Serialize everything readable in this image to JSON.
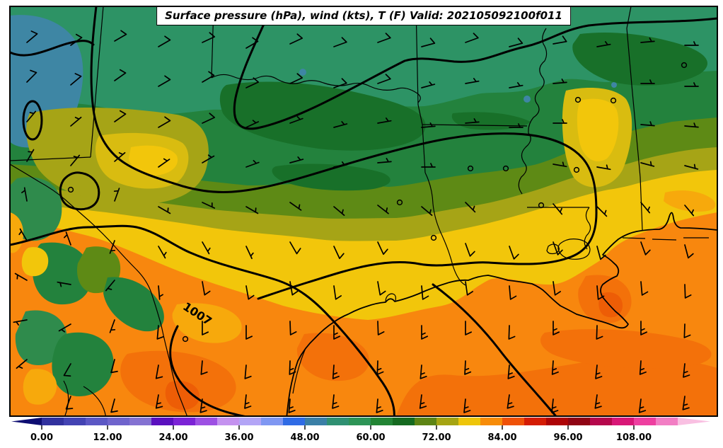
{
  "figure": {
    "title": "Surface pressure (hPa), wind (kts), T (F) Valid: 202105092100f011",
    "pressure_label": "1007"
  },
  "chart_data": {
    "type": "heatmap",
    "title": "Surface pressure (hPa), wind (kts), T (F) Valid: 202105092100f011",
    "field": "2 m temperature (F), filled contours",
    "overlays": [
      "surface pressure isobars (hPa), black contours",
      "wind barbs (kts)"
    ],
    "valid_time": "202105092100f011",
    "isobar_labels": [
      "1007"
    ],
    "colorbar_ticks": [
      "0.00",
      "12.00",
      "24.00",
      "36.00",
      "48.00",
      "60.00",
      "72.00",
      "84.00",
      "96.00",
      "108.00"
    ],
    "colorbar_range": [
      0,
      116
    ],
    "temperature_field_approx_F": {
      "north_band": "52-62",
      "central_band": "64-74",
      "south_and_gulf": "78-86",
      "west_highlands": "56-78 mottled"
    },
    "wind_kts_range": [
      0,
      15
    ]
  },
  "colorbar": {
    "min": 0,
    "max": 116,
    "ticks": [
      {
        "v": 0,
        "label": "0.00"
      },
      {
        "v": 12,
        "label": "12.00"
      },
      {
        "v": 24,
        "label": "24.00"
      },
      {
        "v": 36,
        "label": "36.00"
      },
      {
        "v": 48,
        "label": "48.00"
      },
      {
        "v": 60,
        "label": "60.00"
      },
      {
        "v": 72,
        "label": "72.00"
      },
      {
        "v": 84,
        "label": "84.00"
      },
      {
        "v": 96,
        "label": "96.00"
      },
      {
        "v": 108,
        "label": "108.00"
      }
    ],
    "colors": [
      "#31319e",
      "#4343b3",
      "#5b57c4",
      "#6f64cc",
      "#8472d2",
      "#5a10bf",
      "#7b23d6",
      "#9d50e3",
      "#c492ef",
      "#b3a5f6",
      "#7f97f2",
      "#2f6be5",
      "#3a7fa6",
      "#2f9072",
      "#2d9456",
      "#228434",
      "#156a20",
      "#5d8414",
      "#a5a412",
      "#eec50a",
      "#f78c09",
      "#ef5107",
      "#d41c04",
      "#ad0406",
      "#8f0413",
      "#b5074c",
      "#d81777",
      "#ee3fa0",
      "#f27ec4"
    ],
    "under_color": "#0d0d72",
    "over_color": "#f9c0e2"
  },
  "palette": {
    "sea_green": "#2d9365",
    "teal_blue": "#3e86a4",
    "green": "#23823d",
    "dark_green": "#187029",
    "olive": "#5e8a15",
    "yellow_olive": "#a6a416",
    "gold": "#d9bc10",
    "yellow": "#f2c60b",
    "amber": "#f7a90c",
    "orange": "#f8870e",
    "deep_orange": "#f3710a",
    "red_orange": "#ed5d06"
  },
  "wind_barbs": [
    [
      38,
      60,
      50,
      10
    ],
    [
      100,
      64,
      55,
      10
    ],
    [
      162,
      58,
      60,
      10
    ],
    [
      224,
      66,
      60,
      10
    ],
    [
      286,
      60,
      65,
      10
    ],
    [
      348,
      68,
      60,
      10
    ],
    [
      410,
      62,
      65,
      10
    ],
    [
      472,
      66,
      70,
      10
    ],
    [
      534,
      60,
      70,
      10
    ],
    [
      596,
      66,
      75,
      10
    ],
    [
      658,
      60,
      70,
      10
    ],
    [
      720,
      66,
      75,
      10
    ],
    [
      782,
      62,
      80,
      10
    ],
    [
      844,
      66,
      80,
      5
    ],
    [
      906,
      60,
      85,
      5
    ],
    [
      968,
      64,
      90,
      5
    ],
    [
      38,
      116,
      45,
      10
    ],
    [
      100,
      120,
      50,
      10
    ],
    [
      162,
      114,
      55,
      10
    ],
    [
      224,
      122,
      60,
      10
    ],
    [
      286,
      116,
      60,
      10
    ],
    [
      348,
      124,
      65,
      10
    ],
    [
      410,
      118,
      65,
      10
    ],
    [
      472,
      124,
      70,
      10
    ],
    [
      534,
      118,
      70,
      10
    ],
    [
      596,
      124,
      75,
      5
    ],
    [
      658,
      118,
      80,
      5
    ],
    [
      720,
      124,
      80,
      5
    ],
    [
      782,
      118,
      85,
      5
    ],
    [
      817,
      141,
      0,
      0
    ],
    [
      867,
      142,
      0,
      0
    ],
    [
      906,
      118,
      90,
      5
    ],
    [
      967,
      92,
      0,
      0
    ],
    [
      968,
      122,
      90,
      5
    ],
    [
      38,
      172,
      40,
      5
    ],
    [
      100,
      178,
      50,
      5
    ],
    [
      162,
      172,
      55,
      10
    ],
    [
      224,
      180,
      60,
      10
    ],
    [
      286,
      174,
      65,
      10
    ],
    [
      348,
      180,
      65,
      5
    ],
    [
      410,
      174,
      70,
      5
    ],
    [
      472,
      180,
      75,
      5
    ],
    [
      534,
      174,
      80,
      5
    ],
    [
      596,
      180,
      85,
      5
    ],
    [
      658,
      174,
      85,
      5
    ],
    [
      720,
      180,
      90,
      5
    ],
    [
      782,
      174,
      90,
      5
    ],
    [
      906,
      176,
      95,
      5
    ],
    [
      968,
      178,
      95,
      5
    ],
    [
      38,
      228,
      30,
      5
    ],
    [
      100,
      234,
      40,
      5
    ],
    [
      162,
      228,
      50,
      5
    ],
    [
      224,
      236,
      55,
      5
    ],
    [
      286,
      230,
      60,
      5
    ],
    [
      348,
      236,
      70,
      5
    ],
    [
      410,
      230,
      75,
      5
    ],
    [
      472,
      236,
      80,
      5
    ],
    [
      534,
      230,
      85,
      5
    ],
    [
      596,
      236,
      90,
      5
    ],
    [
      665,
      238,
      0,
      0
    ],
    [
      715,
      238,
      0,
      0
    ],
    [
      782,
      232,
      100,
      5
    ],
    [
      815,
      240,
      0,
      0
    ],
    [
      844,
      236,
      100,
      5
    ],
    [
      906,
      230,
      105,
      5
    ],
    [
      968,
      234,
      105,
      5
    ],
    [
      38,
      284,
      350,
      5
    ],
    [
      100,
      268,
      0,
      0
    ],
    [
      162,
      284,
      20,
      5
    ],
    [
      224,
      292,
      120,
      5
    ],
    [
      286,
      286,
      115,
      5
    ],
    [
      348,
      292,
      120,
      5
    ],
    [
      410,
      286,
      125,
      5
    ],
    [
      472,
      292,
      130,
      5
    ],
    [
      534,
      290,
      128,
      5
    ],
    [
      565,
      286,
      0,
      0
    ],
    [
      596,
      292,
      130,
      5
    ],
    [
      658,
      286,
      135,
      5
    ],
    [
      765,
      290,
      0,
      0
    ],
    [
      782,
      288,
      140,
      5
    ],
    [
      844,
      292,
      135,
      5
    ],
    [
      906,
      286,
      140,
      5
    ],
    [
      968,
      290,
      140,
      5
    ],
    [
      38,
      340,
      330,
      5
    ],
    [
      100,
      346,
      340,
      5
    ],
    [
      162,
      340,
      200,
      5
    ],
    [
      224,
      348,
      150,
      5
    ],
    [
      286,
      342,
      150,
      5
    ],
    [
      348,
      348,
      155,
      5
    ],
    [
      410,
      342,
      150,
      10
    ],
    [
      472,
      348,
      155,
      10
    ],
    [
      534,
      342,
      155,
      10
    ],
    [
      613,
      336,
      0,
      0
    ],
    [
      658,
      344,
      160,
      10
    ],
    [
      720,
      348,
      160,
      10
    ],
    [
      782,
      342,
      160,
      10
    ],
    [
      844,
      348,
      165,
      10
    ],
    [
      906,
      342,
      160,
      10
    ],
    [
      968,
      346,
      165,
      10
    ],
    [
      38,
      396,
      300,
      5
    ],
    [
      100,
      402,
      280,
      5
    ],
    [
      162,
      396,
      220,
      5
    ],
    [
      224,
      404,
      175,
      5
    ],
    [
      286,
      398,
      170,
      10
    ],
    [
      348,
      404,
      170,
      10
    ],
    [
      410,
      398,
      170,
      10
    ],
    [
      472,
      404,
      172,
      10
    ],
    [
      534,
      398,
      170,
      10
    ],
    [
      596,
      404,
      175,
      10
    ],
    [
      658,
      398,
      172,
      10
    ],
    [
      720,
      404,
      175,
      10
    ],
    [
      782,
      398,
      172,
      10
    ],
    [
      844,
      404,
      175,
      10
    ],
    [
      906,
      398,
      175,
      10
    ],
    [
      968,
      402,
      178,
      10
    ],
    [
      38,
      452,
      260,
      5
    ],
    [
      100,
      458,
      240,
      5
    ],
    [
      162,
      452,
      200,
      5
    ],
    [
      224,
      460,
      185,
      10
    ],
    [
      262,
      479,
      0,
      0
    ],
    [
      286,
      454,
      180,
      10
    ],
    [
      348,
      460,
      180,
      10
    ],
    [
      410,
      454,
      178,
      10
    ],
    [
      472,
      460,
      180,
      15
    ],
    [
      534,
      454,
      178,
      10
    ],
    [
      596,
      460,
      180,
      15
    ],
    [
      658,
      454,
      180,
      10
    ],
    [
      720,
      460,
      182,
      10
    ],
    [
      782,
      454,
      180,
      15
    ],
    [
      844,
      460,
      182,
      10
    ],
    [
      906,
      454,
      180,
      15
    ],
    [
      968,
      458,
      182,
      10
    ],
    [
      38,
      508,
      230,
      5
    ],
    [
      100,
      514,
      210,
      10
    ],
    [
      162,
      508,
      195,
      10
    ],
    [
      224,
      516,
      190,
      10
    ],
    [
      286,
      510,
      185,
      10
    ],
    [
      348,
      516,
      185,
      10
    ],
    [
      410,
      510,
      182,
      15
    ],
    [
      472,
      516,
      184,
      15
    ],
    [
      534,
      510,
      182,
      15
    ],
    [
      596,
      516,
      185,
      15
    ],
    [
      658,
      510,
      183,
      15
    ],
    [
      720,
      516,
      185,
      15
    ],
    [
      782,
      510,
      184,
      15
    ],
    [
      844,
      516,
      186,
      15
    ],
    [
      906,
      510,
      184,
      15
    ],
    [
      968,
      514,
      186,
      15
    ],
    [
      100,
      560,
      200,
      10
    ],
    [
      162,
      564,
      195,
      10
    ],
    [
      224,
      558,
      190,
      15
    ],
    [
      286,
      564,
      188,
      15
    ],
    [
      348,
      558,
      186,
      15
    ],
    [
      410,
      564,
      185,
      15
    ],
    [
      472,
      558,
      186,
      15
    ],
    [
      534,
      564,
      185,
      15
    ],
    [
      596,
      558,
      187,
      15
    ],
    [
      658,
      564,
      186,
      15
    ],
    [
      720,
      558,
      188,
      15
    ],
    [
      782,
      564,
      186,
      15
    ],
    [
      844,
      558,
      188,
      15
    ],
    [
      906,
      564,
      187,
      15
    ],
    [
      968,
      560,
      188,
      15
    ]
  ]
}
